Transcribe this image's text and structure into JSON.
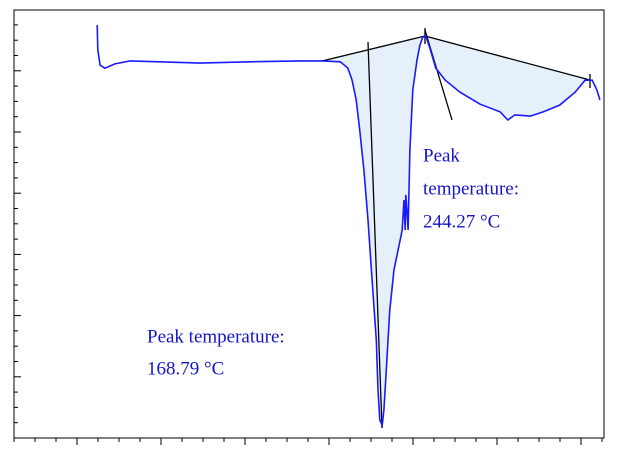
{
  "chart_data": {
    "type": "line",
    "annotations": [
      {
        "lines": [
          "Peak",
          "temperature:",
          "244.27 °C"
        ]
      },
      {
        "lines": [
          "Peak temperature:",
          "168.79 °C"
        ]
      }
    ],
    "xlim": [
      0,
      100
    ],
    "ylim": [
      0,
      100
    ],
    "series": [
      {
        "color": "#1a1aff",
        "x": [
          14.1,
          14.2,
          14.6,
          15.4,
          17.1,
          19.7,
          24.7,
          31.5,
          40.0,
          48.5,
          52.2,
          55.3,
          56.6,
          57.3,
          58.0,
          58.6,
          59.3,
          60.0,
          60.7,
          61.4,
          61.7,
          62.0,
          62.4,
          62.7,
          63.1,
          63.7,
          64.4,
          65.1,
          65.8,
          66.1,
          66.3,
          66.4,
          66.6,
          66.8,
          67.1,
          67.6,
          68.3,
          68.8,
          69.3,
          69.8,
          70.5,
          71.5,
          73.1,
          75.6,
          79.0,
          82.4,
          83.7,
          84.9,
          87.5,
          89.7,
          92.5,
          95.1,
          96.8,
          98.0,
          98.8,
          99.3
        ],
        "values": [
          96.5,
          90.7,
          87.1,
          86.4,
          87.4,
          88.1,
          87.9,
          87.6,
          87.9,
          88.1,
          88.1,
          87.9,
          86.4,
          83.6,
          79.0,
          72.0,
          62.6,
          50.9,
          36.9,
          22.9,
          11.2,
          4.2,
          3.0,
          6.5,
          15.9,
          29.9,
          39.3,
          43.9,
          48.6,
          55.6,
          48.6,
          56.8,
          53.3,
          48.6,
          67.3,
          81.3,
          88.3,
          91.8,
          93.7,
          93.9,
          91.1,
          86.4,
          83.6,
          80.8,
          78.0,
          76.2,
          74.3,
          75.5,
          75.2,
          76.2,
          77.8,
          80.8,
          83.6,
          83.6,
          81.3,
          79.0
        ]
      }
    ]
  }
}
